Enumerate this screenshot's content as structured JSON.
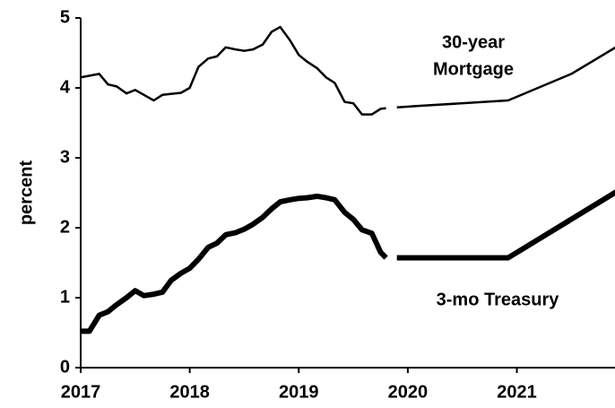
{
  "chart_data": {
    "type": "line",
    "y_label": "percent",
    "annotations": [
      "30-year",
      "Mortgage",
      "3-mo Treasury"
    ],
    "xlim": [
      2017,
      2021.9
    ],
    "xticks": [
      2017,
      2018,
      2019,
      2020,
      2021
    ],
    "ylim": [
      0,
      5
    ],
    "yticks": [
      0,
      1,
      2,
      3,
      4,
      5
    ],
    "series": [
      {
        "color": "#000000",
        "width": 2.5,
        "x": [
          2017.0,
          2017.17,
          2017.25,
          2017.33,
          2017.42,
          2017.5,
          2017.58,
          2017.67,
          2017.75,
          2017.92,
          2018.0,
          2018.08,
          2018.17,
          2018.25,
          2018.33,
          2018.42,
          2018.5,
          2018.58,
          2018.67,
          2018.75,
          2018.83,
          2018.92,
          2019.0,
          2019.08,
          2019.17,
          2019.25,
          2019.33,
          2019.42,
          2019.5,
          2019.58,
          2019.67,
          2019.75,
          2019.8,
          2019.85,
          2019.9,
          2020.08,
          2020.92,
          2021.5,
          2021.95
        ],
        "values": [
          4.15,
          4.2,
          4.05,
          4.02,
          3.92,
          3.97,
          3.9,
          3.82,
          3.9,
          3.93,
          4.0,
          4.3,
          4.42,
          4.45,
          4.58,
          4.55,
          4.53,
          4.55,
          4.62,
          4.8,
          4.87,
          4.68,
          4.47,
          4.37,
          4.28,
          4.15,
          4.07,
          3.8,
          3.78,
          3.62,
          3.62,
          3.7,
          3.71,
          null,
          3.72,
          3.74,
          3.82,
          4.2,
          4.62
        ]
      },
      {
        "color": "#000000",
        "width": 6,
        "x": [
          2017.0,
          2017.08,
          2017.17,
          2017.25,
          2017.33,
          2017.42,
          2017.5,
          2017.58,
          2017.67,
          2017.75,
          2017.83,
          2017.92,
          2018.0,
          2018.08,
          2018.17,
          2018.25,
          2018.33,
          2018.42,
          2018.5,
          2018.58,
          2018.67,
          2018.75,
          2018.83,
          2018.92,
          2019.0,
          2019.08,
          2019.17,
          2019.25,
          2019.33,
          2019.42,
          2019.5,
          2019.58,
          2019.67,
          2019.75,
          2019.8,
          2019.85,
          2019.9,
          2020.92,
          2021.95
        ],
        "values": [
          0.52,
          0.52,
          0.75,
          0.8,
          0.9,
          1.0,
          1.1,
          1.03,
          1.05,
          1.08,
          1.25,
          1.35,
          1.42,
          1.55,
          1.72,
          1.78,
          1.9,
          1.93,
          1.98,
          2.05,
          2.15,
          2.27,
          2.37,
          2.4,
          2.42,
          2.43,
          2.45,
          2.43,
          2.4,
          2.22,
          2.12,
          1.97,
          1.92,
          1.65,
          1.57,
          null,
          1.57,
          1.57,
          2.55
        ]
      }
    ]
  }
}
